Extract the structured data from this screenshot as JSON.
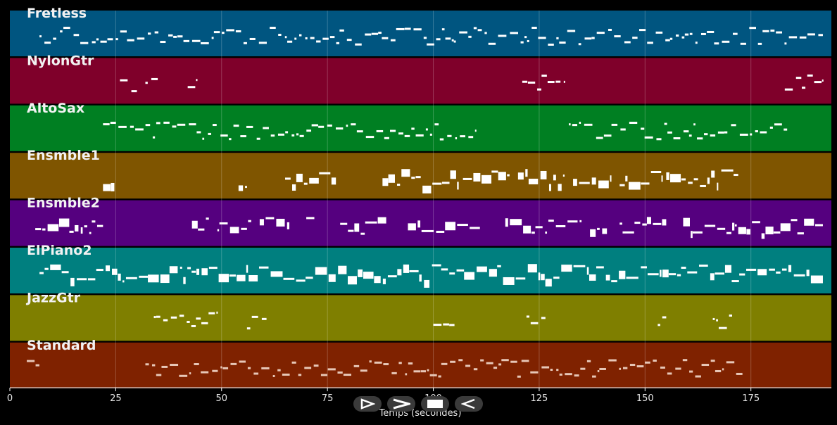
{
  "tracks": [
    {
      "name": "Fretless",
      "color": "#005580"
    },
    {
      "name": "NylonGtr",
      "color": "#7f002a"
    },
    {
      "name": "AltoSax",
      "color": "#007f22"
    },
    {
      "name": "Ensmble1",
      "color": "#7f5500"
    },
    {
      "name": "Ensmble2",
      "color": "#55007f"
    },
    {
      "name": "ElPiano2",
      "color": "#007f7f"
    },
    {
      "name": "JazzGtr",
      "color": "#7f7f00"
    },
    {
      "name": "Standard",
      "color": "#7f2200"
    }
  ],
  "x_axis": {
    "label": "Temps (secondes)",
    "ticks": [
      0,
      25,
      50,
      75,
      100,
      125,
      150,
      175
    ],
    "range": [
      0,
      194
    ]
  },
  "controls": [
    {
      "name": "play-button",
      "icon": "play-icon"
    },
    {
      "name": "fast-forward-button",
      "icon": "fast-forward-icon"
    },
    {
      "name": "stop-button",
      "icon": "stop-icon"
    },
    {
      "name": "rewind-button",
      "icon": "rewind-icon"
    }
  ],
  "note_segments": [
    [
      [
        7,
        192
      ]
    ],
    [
      [
        26,
        30
      ],
      [
        32,
        35
      ],
      [
        42,
        44
      ],
      [
        121,
        131
      ],
      [
        183,
        192
      ]
    ],
    [
      [
        22,
        110
      ],
      [
        132,
        184
      ]
    ],
    [
      [
        22,
        25
      ],
      [
        54,
        56
      ],
      [
        65,
        77
      ],
      [
        88,
        106
      ],
      [
        107,
        118
      ],
      [
        120,
        131
      ],
      [
        133,
        142
      ],
      [
        144,
        154
      ],
      [
        155,
        167
      ],
      [
        168,
        172
      ]
    ],
    [
      [
        6,
        22
      ],
      [
        43,
        47
      ],
      [
        49,
        57
      ],
      [
        59,
        66
      ],
      [
        70,
        72
      ],
      [
        78,
        89
      ],
      [
        94,
        111
      ],
      [
        117,
        135
      ],
      [
        137,
        141
      ],
      [
        144,
        155
      ],
      [
        159,
        192
      ]
    ],
    [
      [
        7,
        192
      ]
    ],
    [
      [
        34,
        49
      ],
      [
        56,
        61
      ],
      [
        100,
        105
      ],
      [
        122,
        127
      ],
      [
        153,
        155
      ],
      [
        166,
        171
      ]
    ],
    [
      [
        4,
        7
      ],
      [
        32,
        173
      ]
    ]
  ]
}
